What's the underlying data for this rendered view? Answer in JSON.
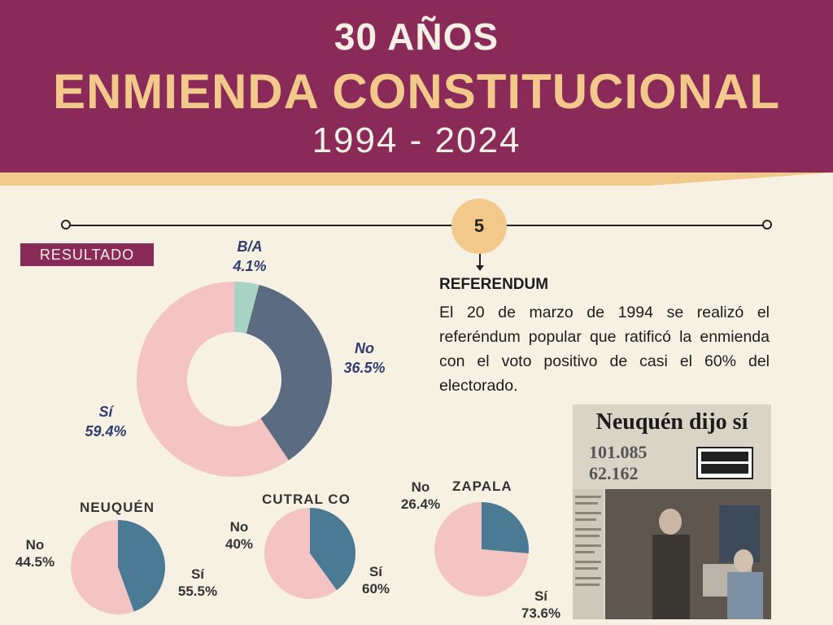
{
  "header": {
    "line1": "30 AÑOS",
    "line2": "ENMIENDA CONSTITUCIONAL",
    "line3": "1994 - 2024"
  },
  "timeline": {
    "step": "5"
  },
  "result_tag": "RESULTADO",
  "referendum": {
    "title": "REFERENDUM",
    "text": "El 20 de marzo de 1994 se realizó el referéndum popular que ratificó la enmienda con el voto positivo de casi el 60% del electorado."
  },
  "newspaper": {
    "headline": "Neuquén dijo sí",
    "num1": "101.085",
    "num2": "62.162"
  },
  "colors": {
    "si": "#f4c4c4",
    "no_main": "#5b6b82",
    "ba": "#a8d3c4",
    "no_sub": "#4b7a94",
    "header": "#8a2a58",
    "accent": "#f2c98a"
  },
  "chart_data": [
    {
      "type": "pie",
      "donut": true,
      "title": "",
      "categories": [
        "B/A",
        "No",
        "Sí"
      ],
      "values": [
        4.1,
        36.5,
        59.4
      ],
      "labels": [
        "4.1%",
        "36.5%",
        "59.4%"
      ]
    },
    {
      "type": "pie",
      "title": "NEUQUÉN",
      "categories": [
        "No",
        "Sí"
      ],
      "values": [
        44.5,
        55.5
      ],
      "labels": [
        "44.5%",
        "55.5%"
      ]
    },
    {
      "type": "pie",
      "title": "CUTRAL CO",
      "categories": [
        "No",
        "Sí"
      ],
      "values": [
        40,
        60
      ],
      "labels": [
        "40%",
        "60%"
      ]
    },
    {
      "type": "pie",
      "title": "ZAPALA",
      "categories": [
        "No",
        "Sí"
      ],
      "values": [
        26.4,
        73.6
      ],
      "labels": [
        "26.4%",
        "73.6%"
      ]
    }
  ]
}
